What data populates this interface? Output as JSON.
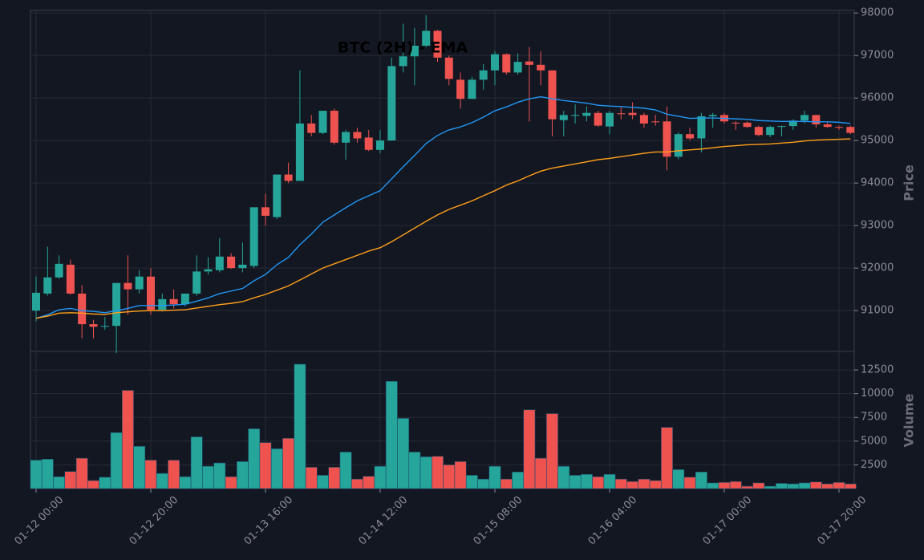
{
  "chart_data": {
    "type": "candlestick",
    "title": "BTC (2H) - EMA",
    "y_label": "Price",
    "y2_label": "Volume",
    "categories": [
      "01-12 00:00",
      null,
      null,
      null,
      null,
      null,
      null,
      null,
      null,
      null,
      "01-12 20:00",
      null,
      null,
      null,
      null,
      null,
      null,
      null,
      null,
      null,
      "01-13 16:00",
      null,
      null,
      null,
      null,
      null,
      null,
      null,
      null,
      null,
      "01-14 12:00",
      null,
      null,
      null,
      null,
      null,
      null,
      null,
      null,
      null,
      "01-15 08:00",
      null,
      null,
      null,
      null,
      null,
      null,
      null,
      null,
      null,
      "01-16 04:00",
      null,
      null,
      null,
      null,
      null,
      null,
      null,
      null,
      null,
      "01-17 00:00",
      null,
      null,
      null,
      null,
      null,
      null,
      null,
      null,
      null,
      "01-17 20:00",
      null
    ],
    "open": [
      91000,
      91400,
      91780,
      92080,
      91400,
      90680,
      90620,
      90640,
      91650,
      91500,
      91800,
      91020,
      91270,
      91150,
      91400,
      91920,
      91950,
      92270,
      92000,
      92050,
      93430,
      93200,
      94200,
      94050,
      95400,
      95180,
      95700,
      94950,
      95200,
      95070,
      94780,
      95000,
      96750,
      96980,
      97230,
      97580,
      96950,
      96430,
      95980,
      96430,
      96650,
      97030,
      96600,
      96860,
      96780,
      96650,
      95480,
      95580,
      95580,
      95650,
      95330,
      95640,
      95650,
      95600,
      95450,
      95450,
      94620,
      95150,
      95050,
      95570,
      95600,
      95420,
      95420,
      95320,
      95130,
      95320,
      95340,
      95470,
      95600,
      95380,
      95320,
      95320
    ],
    "high": [
      91800,
      92500,
      92300,
      92200,
      91600,
      90780,
      90850,
      91650,
      92300,
      91950,
      92000,
      91400,
      91500,
      91400,
      92300,
      92250,
      92700,
      92350,
      92600,
      93430,
      93750,
      94200,
      94480,
      96650,
      95600,
      95700,
      95750,
      95250,
      95300,
      95250,
      95250,
      96950,
      97750,
      97650,
      97950,
      97600,
      97000,
      96600,
      96500,
      96800,
      97100,
      97050,
      97050,
      97200,
      97100,
      96650,
      95700,
      95850,
      95800,
      95700,
      95700,
      95800,
      95900,
      95650,
      95600,
      95800,
      95200,
      95300,
      95650,
      95650,
      95650,
      95450,
      95450,
      95350,
      95350,
      95350,
      95500,
      95700,
      95600,
      95450,
      95350,
      95350
    ],
    "low": [
      90750,
      91350,
      91750,
      91380,
      90350,
      90350,
      90550,
      90000,
      90900,
      91400,
      90900,
      90980,
      91050,
      91100,
      91350,
      91850,
      91900,
      91980,
      91900,
      92000,
      93000,
      93150,
      94000,
      94050,
      95100,
      95150,
      94900,
      94550,
      94950,
      94750,
      94700,
      95000,
      96600,
      96300,
      97200,
      96850,
      96300,
      95750,
      95980,
      96200,
      96300,
      96550,
      96550,
      95450,
      96300,
      95100,
      95100,
      95400,
      95450,
      95320,
      95150,
      95500,
      95500,
      95300,
      95350,
      94300,
      94560,
      95000,
      94720,
      95300,
      95400,
      95250,
      95300,
      95100,
      95080,
      95100,
      95250,
      95400,
      95300,
      95300,
      95250,
      95150
    ],
    "close": [
      91420,
      91780,
      92100,
      91400,
      90680,
      90620,
      90640,
      91650,
      91500,
      91800,
      91020,
      91270,
      91150,
      91400,
      91920,
      91970,
      92270,
      92000,
      92080,
      93430,
      93230,
      94200,
      94050,
      95400,
      95180,
      95700,
      94950,
      95200,
      95050,
      94780,
      95000,
      96750,
      96980,
      97230,
      97580,
      96950,
      96450,
      95980,
      96430,
      96650,
      97030,
      96600,
      96850,
      96780,
      96650,
      95500,
      95600,
      95600,
      95650,
      95350,
      95650,
      95620,
      95600,
      95400,
      95430,
      94620,
      95150,
      95050,
      95570,
      95600,
      95450,
      95400,
      95320,
      95130,
      95320,
      95340,
      95470,
      95600,
      95380,
      95320,
      95310,
      95180
    ],
    "volume": [
      3000,
      3100,
      1250,
      1800,
      3200,
      850,
      1200,
      5900,
      10350,
      4450,
      3000,
      1600,
      3000,
      1250,
      5450,
      2350,
      2700,
      1250,
      2850,
      6300,
      4850,
      4200,
      5300,
      13100,
      2250,
      1400,
      2250,
      3850,
      1000,
      1300,
      2350,
      11300,
      7400,
      3850,
      3350,
      3400,
      2500,
      2850,
      1400,
      1000,
      2350,
      1000,
      1750,
      8300,
      3200,
      7900,
      2350,
      1400,
      1500,
      1250,
      1500,
      1000,
      750,
      1000,
      850,
      6450,
      2000,
      1200,
      1750,
      600,
      650,
      750,
      250,
      600,
      250,
      550,
      500,
      600,
      700,
      500,
      650,
      500
    ],
    "ema": [
      {
        "color": "#2196f3",
        "values": [
          90820,
          90900,
          91020,
          91050,
          91000,
          90980,
          90950,
          91000,
          91050,
          91120,
          91120,
          91120,
          91130,
          91150,
          91220,
          91300,
          91400,
          91460,
          91520,
          91700,
          91850,
          92080,
          92250,
          92550,
          92800,
          93080,
          93250,
          93420,
          93580,
          93700,
          93820,
          94100,
          94380,
          94650,
          94930,
          95120,
          95250,
          95320,
          95420,
          95550,
          95700,
          95790,
          95900,
          95980,
          96030,
          95980,
          95940,
          95910,
          95880,
          95830,
          95810,
          95800,
          95780,
          95760,
          95720,
          95620,
          95570,
          95520,
          95530,
          95530,
          95520,
          95510,
          95500,
          95470,
          95460,
          95450,
          95450,
          95450,
          95440,
          95440,
          95430,
          95400
        ]
      },
      {
        "color": "#ff9f1a",
        "values": [
          90820,
          90870,
          90940,
          90950,
          90940,
          90920,
          90910,
          90950,
          90970,
          90990,
          91000,
          91000,
          91010,
          91020,
          91060,
          91100,
          91140,
          91170,
          91210,
          91300,
          91380,
          91480,
          91580,
          91720,
          91860,
          92000,
          92100,
          92200,
          92300,
          92400,
          92480,
          92620,
          92780,
          92940,
          93100,
          93250,
          93380,
          93480,
          93580,
          93700,
          93820,
          93950,
          94050,
          94170,
          94280,
          94350,
          94400,
          94450,
          94500,
          94550,
          94580,
          94620,
          94660,
          94700,
          94730,
          94730,
          94760,
          94780,
          94800,
          94830,
          94860,
          94880,
          94900,
          94910,
          94920,
          94940,
          94960,
          94990,
          95010,
          95020,
          95030,
          95040
        ]
      }
    ],
    "up_color": "#26a69a",
    "down_color": "#ef5350",
    "ylim": [
      90040,
      98060
    ],
    "yticks": [
      91000,
      92000,
      93000,
      94000,
      95000,
      96000,
      97000,
      98000
    ],
    "y2lim": [
      0,
      14450
    ],
    "y2ticks": [
      2500,
      5000,
      7500,
      10000,
      12500
    ],
    "grid": true
  }
}
